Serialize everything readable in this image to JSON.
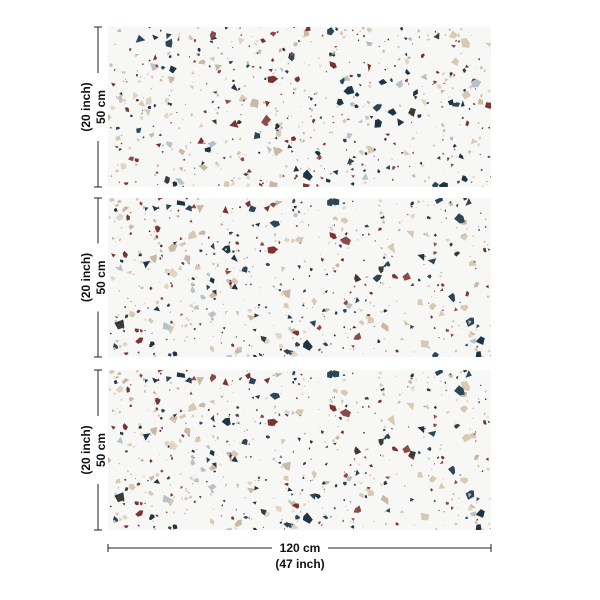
{
  "panels": [
    {
      "height": "50 cm",
      "height_inch": "(20 inch)"
    },
    {
      "height": "50 cm",
      "height_inch": "(20 inch)"
    },
    {
      "height": "50 cm",
      "height_inch": "(20 inch)"
    }
  ],
  "width": {
    "metric": "120 cm",
    "imperial": "(47 inch)"
  }
}
